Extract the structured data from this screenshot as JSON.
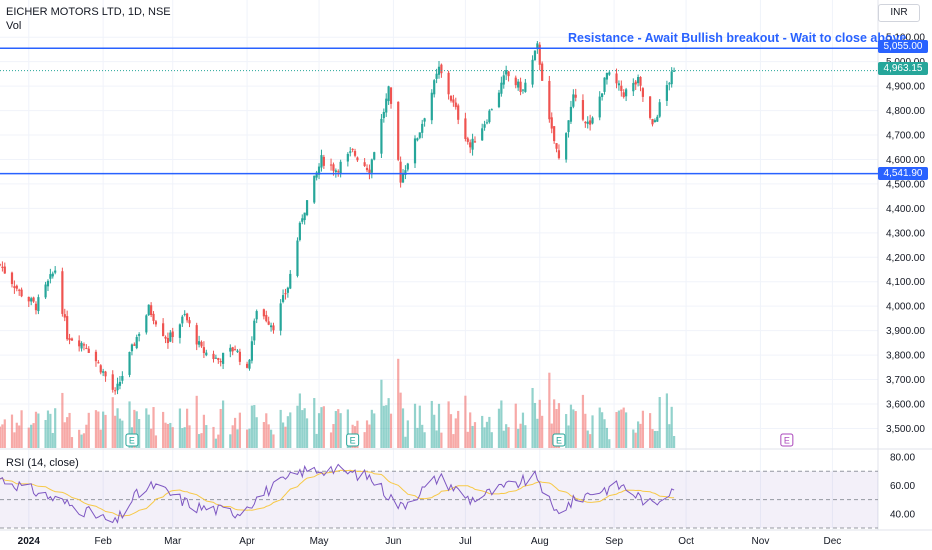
{
  "header": {
    "title": "EICHER MOTORS LTD, 1D, NSE",
    "volume_label": "Vol",
    "currency": "INR"
  },
  "annotation": "Resistance - Await Bullish breakout - Wait to close above",
  "levels": {
    "resistance": "5,055.00",
    "support": "4,541.90",
    "last_price": "4,963.15"
  },
  "colors": {
    "up": "#26a69a",
    "down": "#ef5350",
    "line": "#2962ff",
    "rsi": "#7e57c2",
    "rsi_ma": "#f7c948",
    "rsi_band": "#7e57c2"
  },
  "rsi_label": "RSI (14, close)",
  "earnings_marker": "E",
  "chart_data": [
    {
      "type": "candlestick",
      "x_range": [
        "2023-12-20",
        "2024-12-20"
      ],
      "y_range": [
        3420,
        5150
      ],
      "y_ticks": [
        "5,100.00",
        "5,000.00",
        "4,900.00",
        "4,800.00",
        "4,700.00",
        "4,600.00",
        "4,500.00",
        "4,400.00",
        "4,300.00",
        "4,200.00",
        "4,100.00",
        "4,000.00",
        "3,900.00",
        "3,800.00",
        "3,700.00",
        "3,600.00",
        "3,500.00"
      ],
      "y_tick_values": [
        5100,
        5000,
        4900,
        4800,
        4700,
        4600,
        4500,
        4400,
        4300,
        4200,
        4100,
        4000,
        3900,
        3800,
        3700,
        3600,
        3500
      ],
      "x_ticks": [
        "2024",
        "Feb",
        "Mar",
        "Apr",
        "May",
        "Jun",
        "Jul",
        "Aug",
        "Sep",
        "Oct",
        "Nov",
        "Dec"
      ],
      "x_tick_dates": [
        "2024-01-01",
        "2024-02-01",
        "2024-03-01",
        "2024-04-01",
        "2024-05-01",
        "2024-06-01",
        "2024-07-01",
        "2024-08-01",
        "2024-09-01",
        "2024-10-01",
        "2024-11-01",
        "2024-12-01"
      ],
      "horizontal_lines": [
        5055,
        4541.9
      ],
      "last_price_line": 4963.15,
      "earnings_dates": [
        "2024-02-13",
        "2024-05-15",
        "2024-08-09",
        "2024-11-12"
      ],
      "close_keypoints": [
        [
          "2023-12-20",
          4170
        ],
        [
          "2023-12-28",
          4060
        ],
        [
          "2024-01-04",
          4000
        ],
        [
          "2024-01-12",
          4150
        ],
        [
          "2024-01-17",
          3880
        ],
        [
          "2024-01-25",
          3840
        ],
        [
          "2024-02-01",
          3730
        ],
        [
          "2024-02-06",
          3640
        ],
        [
          "2024-02-14",
          3850
        ],
        [
          "2024-02-20",
          3990
        ],
        [
          "2024-02-28",
          3860
        ],
        [
          "2024-03-06",
          3960
        ],
        [
          "2024-03-13",
          3820
        ],
        [
          "2024-03-20",
          3780
        ],
        [
          "2024-03-27",
          3830
        ],
        [
          "2024-04-01",
          3730
        ],
        [
          "2024-04-05",
          3990
        ],
        [
          "2024-04-12",
          3920
        ],
        [
          "2024-04-18",
          4080
        ],
        [
          "2024-04-24",
          4370
        ],
        [
          "2024-05-02",
          4600
        ],
        [
          "2024-05-08",
          4560
        ],
        [
          "2024-05-15",
          4630
        ],
        [
          "2024-05-22",
          4560
        ],
        [
          "2024-05-30",
          4880
        ],
        [
          "2024-06-04",
          4520
        ],
        [
          "2024-06-12",
          4720
        ],
        [
          "2024-06-20",
          4970
        ],
        [
          "2024-06-27",
          4800
        ],
        [
          "2024-07-03",
          4650
        ],
        [
          "2024-07-10",
          4770
        ],
        [
          "2024-07-18",
          4950
        ],
        [
          "2024-07-25",
          4880
        ],
        [
          "2024-07-31",
          5060
        ],
        [
          "2024-08-05",
          4750
        ],
        [
          "2024-08-09",
          4600
        ],
        [
          "2024-08-15",
          4850
        ],
        [
          "2024-08-22",
          4730
        ],
        [
          "2024-08-29",
          4950
        ],
        [
          "2024-09-05",
          4870
        ],
        [
          "2024-09-11",
          4920
        ],
        [
          "2024-09-17",
          4730
        ],
        [
          "2024-09-22",
          4880
        ],
        [
          "2024-09-26",
          4963
        ]
      ]
    },
    {
      "type": "bar",
      "name": "Vol",
      "note": "volume histogram colored by candle direction"
    },
    {
      "type": "line",
      "name": "RSI (14, close)",
      "y_range": [
        30,
        85
      ],
      "y_ticks": [
        "80.00",
        "60.00",
        "40.00"
      ],
      "y_tick_values": [
        80,
        60,
        40
      ],
      "band": [
        30,
        70
      ],
      "keypoints": [
        [
          "2023-12-20",
          65
        ],
        [
          "2024-01-05",
          55
        ],
        [
          "2024-01-20",
          45
        ],
        [
          "2024-02-06",
          33
        ],
        [
          "2024-02-14",
          52
        ],
        [
          "2024-02-22",
          60
        ],
        [
          "2024-03-10",
          45
        ],
        [
          "2024-03-28",
          41
        ],
        [
          "2024-04-10",
          57
        ],
        [
          "2024-04-24",
          70
        ],
        [
          "2024-05-06",
          72
        ],
        [
          "2024-05-22",
          66
        ],
        [
          "2024-06-04",
          45
        ],
        [
          "2024-06-20",
          66
        ],
        [
          "2024-07-03",
          50
        ],
        [
          "2024-07-20",
          60
        ],
        [
          "2024-07-31",
          66
        ],
        [
          "2024-08-07",
          41
        ],
        [
          "2024-08-22",
          55
        ],
        [
          "2024-09-04",
          60
        ],
        [
          "2024-09-17",
          46
        ],
        [
          "2024-09-26",
          60
        ]
      ]
    }
  ]
}
